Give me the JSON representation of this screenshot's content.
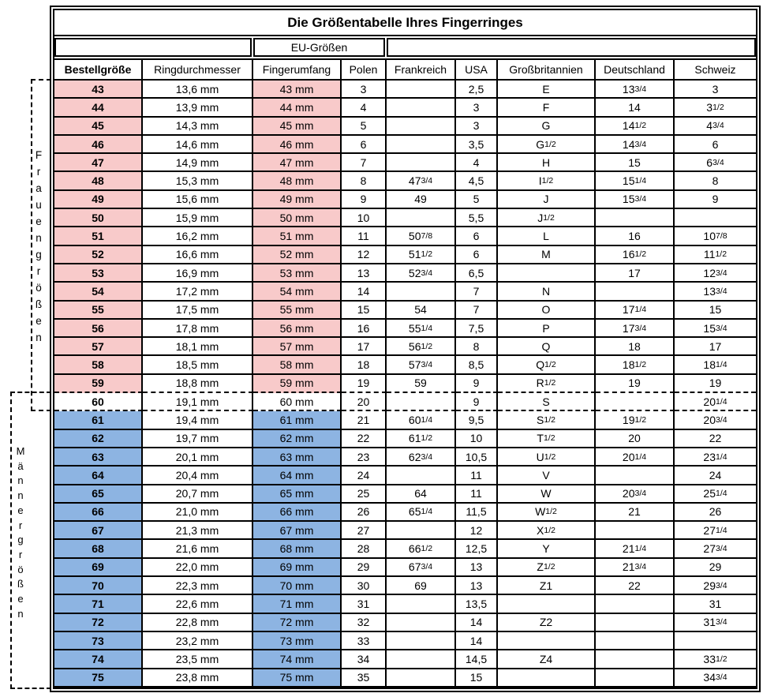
{
  "title": "Die Größentabelle Ihres Fingerringes",
  "eu_group_label": "EU-Größen",
  "columns": [
    "Bestellgröße",
    "Ringdurchmesser",
    "Fingerumfang",
    "Polen",
    "Frankreich",
    "USA",
    "Großbritannien",
    "Deutschland",
    "Schweiz"
  ],
  "side_labels": {
    "women": "Frauengrößen",
    "men": "Männergrößen"
  },
  "colors": {
    "women_row": "#f8caca",
    "men_row": "#8db4e2",
    "grid": "#000000"
  },
  "rows": [
    {
      "group": "women",
      "cells": [
        "43",
        "13,6 mm",
        "43 mm",
        "3",
        "",
        "2,5",
        "E",
        "13 3/4",
        "3"
      ]
    },
    {
      "group": "women",
      "cells": [
        "44",
        "13,9 mm",
        "44 mm",
        "4",
        "",
        "3",
        "F",
        "14",
        "3 1/2"
      ]
    },
    {
      "group": "women",
      "cells": [
        "45",
        "14,3 mm",
        "45 mm",
        "5",
        "",
        "3",
        "G",
        "14 1/2",
        "4 3/4"
      ]
    },
    {
      "group": "women",
      "cells": [
        "46",
        "14,6 mm",
        "46 mm",
        "6",
        "",
        "3,5",
        "G 1/2",
        "14 3/4",
        "6"
      ]
    },
    {
      "group": "women",
      "cells": [
        "47",
        "14,9 mm",
        "47 mm",
        "7",
        "",
        "4",
        "H",
        "15",
        "6 3/4"
      ]
    },
    {
      "group": "women",
      "cells": [
        "48",
        "15,3 mm",
        "48 mm",
        "8",
        "47 3/4",
        "4,5",
        "I 1/2",
        "15 1/4",
        "8"
      ]
    },
    {
      "group": "women",
      "cells": [
        "49",
        "15,6 mm",
        "49 mm",
        "9",
        "49",
        "5",
        "J",
        "15 3/4",
        "9"
      ]
    },
    {
      "group": "women",
      "cells": [
        "50",
        "15,9 mm",
        "50 mm",
        "10",
        "",
        "5,5",
        "J 1/2",
        "",
        ""
      ]
    },
    {
      "group": "women",
      "cells": [
        "51",
        "16,2 mm",
        "51 mm",
        "11",
        "50 7/8",
        "6",
        "L",
        "16",
        "10 7/8"
      ]
    },
    {
      "group": "women",
      "cells": [
        "52",
        "16,6 mm",
        "52 mm",
        "12",
        "51 1/2",
        "6",
        "M",
        "16 1/2",
        "11 1/2"
      ]
    },
    {
      "group": "women",
      "cells": [
        "53",
        "16,9 mm",
        "53 mm",
        "13",
        "52 3/4",
        "6,5",
        "",
        "17",
        "12 3/4"
      ]
    },
    {
      "group": "women",
      "cells": [
        "54",
        "17,2 mm",
        "54 mm",
        "14",
        "",
        "7",
        "N",
        "",
        "13 3/4"
      ]
    },
    {
      "group": "women",
      "cells": [
        "55",
        "17,5 mm",
        "55 mm",
        "15",
        "54",
        "7",
        "O",
        "17 1/4",
        "15"
      ]
    },
    {
      "group": "women",
      "cells": [
        "56",
        "17,8 mm",
        "56 mm",
        "16",
        "55 1/4",
        "7,5",
        "P",
        "17 3/4",
        "15 3/4"
      ]
    },
    {
      "group": "women",
      "cells": [
        "57",
        "18,1 mm",
        "57 mm",
        "17",
        "56 1/2",
        "8",
        "Q",
        "18",
        "17"
      ]
    },
    {
      "group": "women",
      "cells": [
        "58",
        "18,5 mm",
        "58 mm",
        "18",
        "57 3/4",
        "8,5",
        "Q 1/2",
        "18 1/2",
        "18 1/4"
      ]
    },
    {
      "group": "women",
      "cells": [
        "59",
        "18,8 mm",
        "59 mm",
        "19",
        "59",
        "9",
        "R 1/2",
        "19",
        "19"
      ]
    },
    {
      "group": "neutral",
      "cells": [
        "60",
        "19,1 mm",
        "60 mm",
        "20",
        "",
        "9",
        "S",
        "",
        "20 1/4"
      ]
    },
    {
      "group": "men",
      "cells": [
        "61",
        "19,4 mm",
        "61 mm",
        "21",
        "60 1/4",
        "9,5",
        "S 1/2",
        "19 1/2",
        "20 3/4"
      ]
    },
    {
      "group": "men",
      "cells": [
        "62",
        "19,7 mm",
        "62 mm",
        "22",
        "61 1/2",
        "10",
        "T 1/2",
        "20",
        "22"
      ]
    },
    {
      "group": "men",
      "cells": [
        "63",
        "20,1 mm",
        "63 mm",
        "23",
        "62 3/4",
        "10,5",
        "U 1/2",
        "20 1/4",
        "23 1/4"
      ]
    },
    {
      "group": "men",
      "cells": [
        "64",
        "20,4 mm",
        "64 mm",
        "24",
        "",
        "11",
        "V",
        "",
        "24"
      ]
    },
    {
      "group": "men",
      "cells": [
        "65",
        "20,7 mm",
        "65 mm",
        "25",
        "64",
        "11",
        "W",
        "20 3/4",
        "25 1/4"
      ]
    },
    {
      "group": "men",
      "cells": [
        "66",
        "21,0 mm",
        "66 mm",
        "26",
        "65 1/4",
        "11,5",
        "W 1/2",
        "21",
        "26"
      ]
    },
    {
      "group": "men",
      "cells": [
        "67",
        "21,3 mm",
        "67 mm",
        "27",
        "",
        "12",
        "X 1/2",
        "",
        "27 1/4"
      ]
    },
    {
      "group": "men",
      "cells": [
        "68",
        "21,6 mm",
        "68 mm",
        "28",
        "66 1/2",
        "12,5",
        "Y",
        "21 1/4",
        "27 3/4"
      ]
    },
    {
      "group": "men",
      "cells": [
        "69",
        "22,0 mm",
        "69 mm",
        "29",
        "67 3/4",
        "13",
        "Z 1/2",
        "21 3/4",
        "29"
      ]
    },
    {
      "group": "men",
      "cells": [
        "70",
        "22,3 mm",
        "70 mm",
        "30",
        "69",
        "13",
        "Z1",
        "22",
        "29 3/4"
      ]
    },
    {
      "group": "men",
      "cells": [
        "71",
        "22,6 mm",
        "71 mm",
        "31",
        "",
        "13,5",
        "",
        "",
        "31"
      ]
    },
    {
      "group": "men",
      "cells": [
        "72",
        "22,8 mm",
        "72 mm",
        "32",
        "",
        "14",
        "Z2",
        "",
        "31 3/4"
      ]
    },
    {
      "group": "men",
      "cells": [
        "73",
        "23,2 mm",
        "73 mm",
        "33",
        "",
        "14",
        "",
        "",
        ""
      ]
    },
    {
      "group": "men",
      "cells": [
        "74",
        "23,5 mm",
        "74 mm",
        "34",
        "",
        "14,5",
        "Z4",
        "",
        "33 1/2"
      ]
    },
    {
      "group": "men",
      "cells": [
        "75",
        "23,8 mm",
        "75 mm",
        "35",
        "",
        "15",
        "",
        "",
        "34 3/4"
      ]
    }
  ]
}
